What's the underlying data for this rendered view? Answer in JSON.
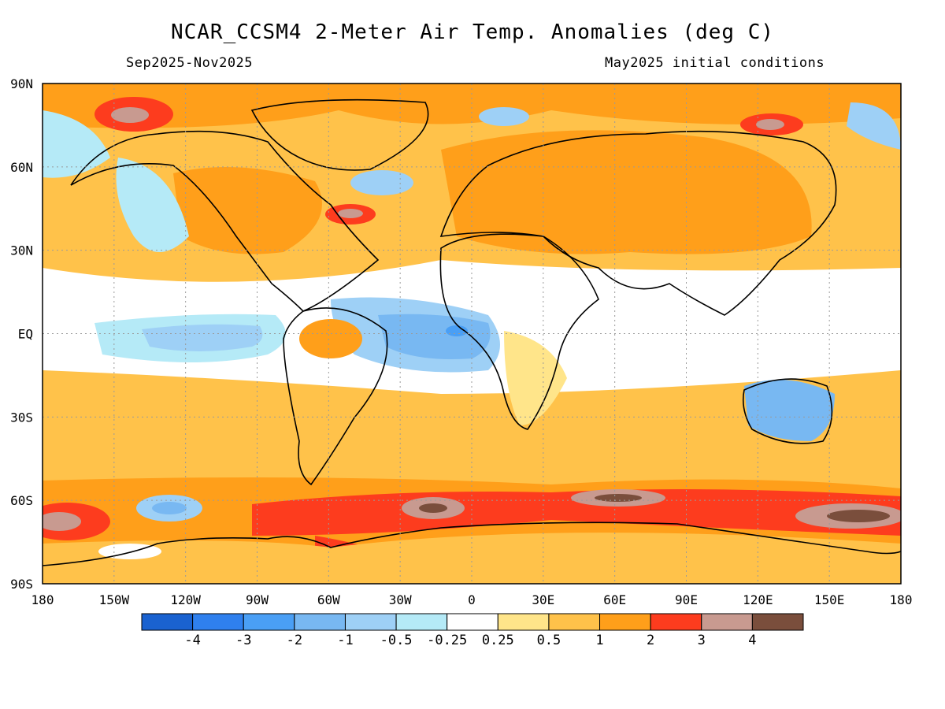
{
  "title": "NCAR_CCSM4 2-Meter Air Temp. Anomalies (deg C)",
  "period": "Sep2025-Nov2025",
  "init": "May2025 initial conditions",
  "lat_ticks": [
    "90N",
    "60N",
    "30N",
    "EQ",
    "30S",
    "60S",
    "90S"
  ],
  "lon_ticks": [
    "180",
    "150W",
    "120W",
    "90W",
    "60W",
    "30W",
    "0",
    "30E",
    "60E",
    "90E",
    "120E",
    "150E",
    "180"
  ],
  "colorbar": {
    "colors": [
      "#1a62d0",
      "#2f80ee",
      "#4a9ff5",
      "#78b8f2",
      "#9ed0f6",
      "#b5eaf7",
      "#ffffff",
      "#ffe58a",
      "#ffc24a",
      "#ff9f1a",
      "#fd3c1e",
      "#c89a90",
      "#7a4e3c"
    ],
    "labels": [
      "-4",
      "-3",
      "-2",
      "-1",
      "-0.5",
      "-0.25",
      "0.25",
      "0.5",
      "1",
      "2",
      "3",
      "4"
    ]
  }
}
